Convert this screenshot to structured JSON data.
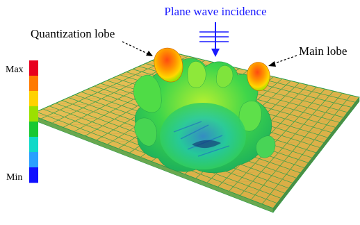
{
  "annotations": {
    "incidence_label": "Plane wave incidence",
    "quantization_lobe_label": "Quantization lobe",
    "main_lobe_label": "Main lobe"
  },
  "colorbar": {
    "max_label": "Max",
    "min_label": "Min",
    "colors": [
      "#e8001e",
      "#ff7a00",
      "#ffd200",
      "#9be000",
      "#19c832",
      "#10d9c8",
      "#2aa0ff",
      "#1010ff"
    ]
  },
  "colors": {
    "incidence": "#1a1aff",
    "board": "#e3ba4c",
    "grid_line": "#2e9d4a",
    "cell": "#c9a24a"
  }
}
